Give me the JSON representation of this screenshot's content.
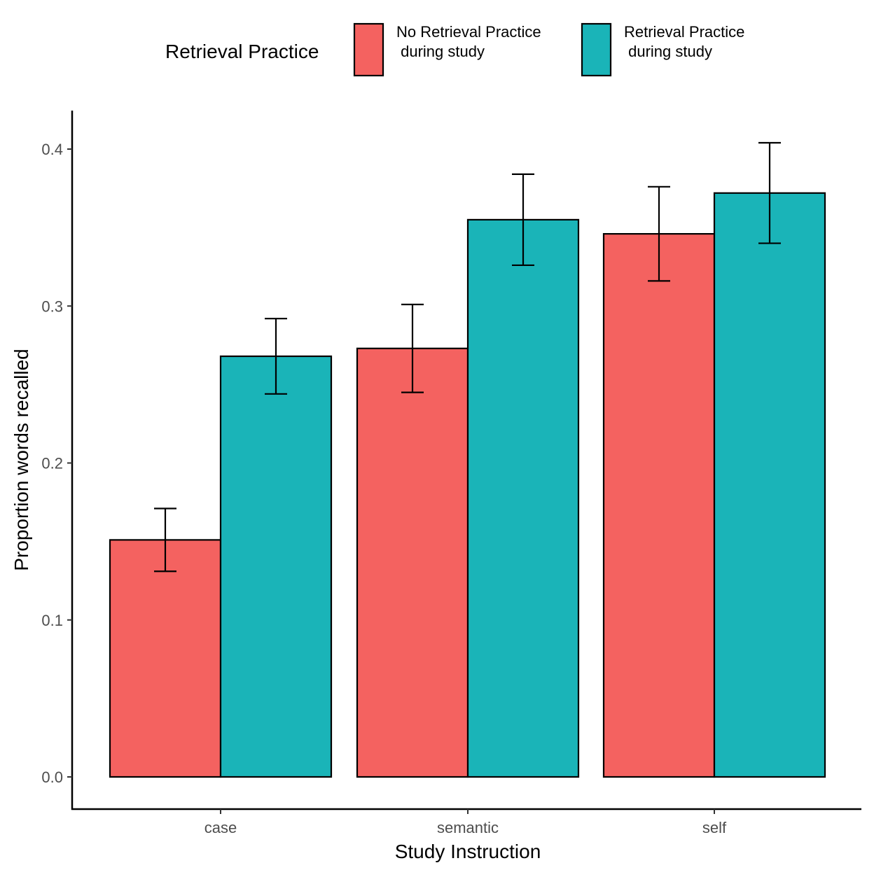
{
  "chart_data": {
    "type": "bar",
    "xlabel": "Study Instruction",
    "ylabel": "Proportion words recalled",
    "categories": [
      "case",
      "semantic",
      "self"
    ],
    "ylim": [
      -0.02,
      0.424
    ],
    "yticks": [
      0.0,
      0.1,
      0.2,
      0.3,
      0.4
    ],
    "ytick_labels": [
      "0.0",
      "0.1",
      "0.2",
      "0.3",
      "0.4"
    ],
    "grid": false,
    "legend": {
      "title": "Retrieval Practice",
      "position": "top"
    },
    "series": [
      {
        "name": "No Retrieval Practice\n during study",
        "color": "#F46260",
        "values": [
          0.151,
          0.273,
          0.346
        ],
        "err_low": [
          0.131,
          0.245,
          0.316
        ],
        "err_high": [
          0.171,
          0.301,
          0.376
        ]
      },
      {
        "name": "Retrieval Practice\n during study",
        "color": "#1AB4B8",
        "values": [
          0.268,
          0.355,
          0.372
        ],
        "err_low": [
          0.244,
          0.326,
          0.34
        ],
        "err_high": [
          0.292,
          0.384,
          0.404
        ]
      }
    ]
  }
}
